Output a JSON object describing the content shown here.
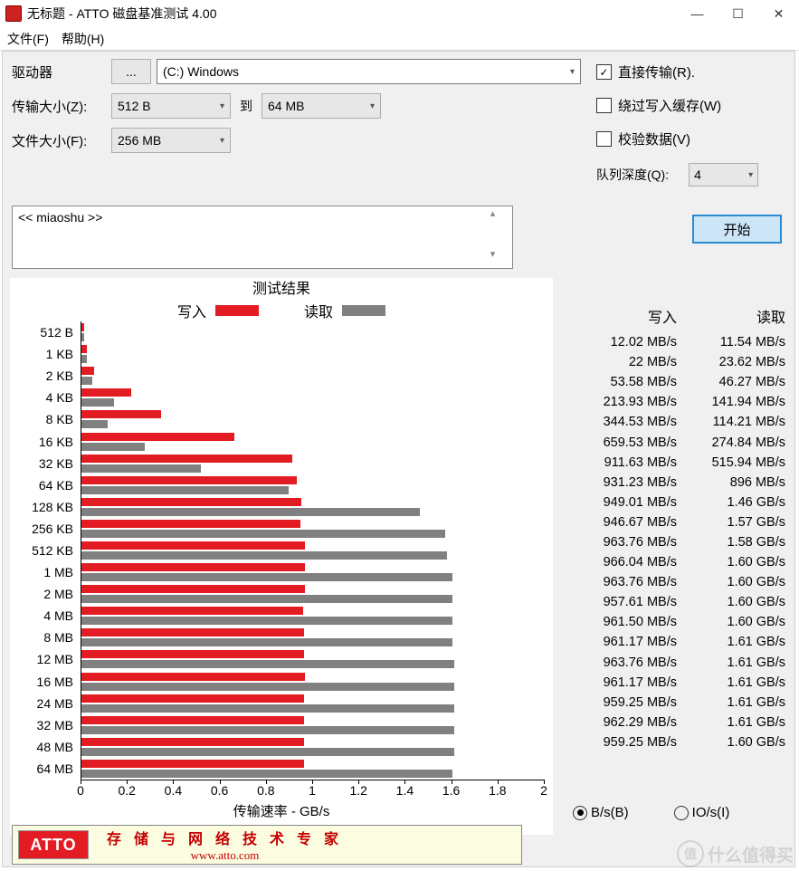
{
  "window": {
    "title": "无标题 - ATTO 磁盘基准测试 4.00"
  },
  "menus": {
    "file": "文件(F)",
    "help": "帮助(H)"
  },
  "labels": {
    "drive": "驱动器",
    "drive_btn": "...",
    "transfer_size": "传输大小(Z):",
    "to": "到",
    "file_size": "文件大小(F):"
  },
  "values": {
    "drive_selected": "(C:) Windows",
    "transfer_from": "512 B",
    "transfer_to": "64 MB",
    "file_size": "256 MB",
    "queue_depth": "4",
    "description": "<< miaoshu >>"
  },
  "checkboxes": {
    "direct": {
      "label": "直接传输(R).",
      "checked": true
    },
    "bypass": {
      "label": "绕过写入缓存(W)",
      "checked": false
    },
    "verify": {
      "label": "校验数据(V)",
      "checked": false
    },
    "queue_label": "队列深度(Q):"
  },
  "start_button": "开始",
  "chart": {
    "title": "测试结果",
    "legend_write": "写入",
    "legend_read": "读取",
    "write_color": "#e31b23",
    "read_color": "#808080",
    "y_categories": [
      "512 B",
      "1 KB",
      "2 KB",
      "4 KB",
      "8 KB",
      "16 KB",
      "32 KB",
      "64 KB",
      "128 KB",
      "256 KB",
      "512 KB",
      "1 MB",
      "2 MB",
      "4 MB",
      "8 MB",
      "12 MB",
      "16 MB",
      "24 MB",
      "32 MB",
      "48 MB",
      "64 MB"
    ],
    "x_max": 2.0,
    "x_ticks": [
      0,
      0.2,
      0.4,
      0.6,
      0.8,
      1,
      1.2,
      1.4,
      1.6,
      1.8,
      2
    ],
    "x_label": "传输速率 - GB/s",
    "write_gbps": [
      0.01202,
      0.022,
      0.05358,
      0.21393,
      0.34453,
      0.65953,
      0.91163,
      0.93123,
      0.94901,
      0.94667,
      0.96376,
      0.96604,
      0.96376,
      0.95761,
      0.9615,
      0.96117,
      0.96376,
      0.96117,
      0.95925,
      0.96229,
      0.95925
    ],
    "read_gbps": [
      0.01154,
      0.02362,
      0.04627,
      0.14194,
      0.11421,
      0.27484,
      0.51594,
      0.896,
      1.46,
      1.57,
      1.58,
      1.6,
      1.6,
      1.6,
      1.6,
      1.61,
      1.61,
      1.61,
      1.61,
      1.61,
      1.6
    ]
  },
  "results": {
    "head_write": "写入",
    "head_read": "读取",
    "rows": [
      {
        "w": "12.02 MB/s",
        "r": "11.54 MB/s"
      },
      {
        "w": "22 MB/s",
        "r": "23.62 MB/s"
      },
      {
        "w": "53.58 MB/s",
        "r": "46.27 MB/s"
      },
      {
        "w": "213.93 MB/s",
        "r": "141.94 MB/s"
      },
      {
        "w": "344.53 MB/s",
        "r": "114.21 MB/s"
      },
      {
        "w": "659.53 MB/s",
        "r": "274.84 MB/s"
      },
      {
        "w": "911.63 MB/s",
        "r": "515.94 MB/s"
      },
      {
        "w": "931.23 MB/s",
        "r": "896 MB/s"
      },
      {
        "w": "949.01 MB/s",
        "r": "1.46 GB/s"
      },
      {
        "w": "946.67 MB/s",
        "r": "1.57 GB/s"
      },
      {
        "w": "963.76 MB/s",
        "r": "1.58 GB/s"
      },
      {
        "w": "966.04 MB/s",
        "r": "1.60 GB/s"
      },
      {
        "w": "963.76 MB/s",
        "r": "1.60 GB/s"
      },
      {
        "w": "957.61 MB/s",
        "r": "1.60 GB/s"
      },
      {
        "w": "961.50 MB/s",
        "r": "1.60 GB/s"
      },
      {
        "w": "961.17 MB/s",
        "r": "1.61 GB/s"
      },
      {
        "w": "963.76 MB/s",
        "r": "1.61 GB/s"
      },
      {
        "w": "961.17 MB/s",
        "r": "1.61 GB/s"
      },
      {
        "w": "959.25 MB/s",
        "r": "1.61 GB/s"
      },
      {
        "w": "962.29 MB/s",
        "r": "1.61 GB/s"
      },
      {
        "w": "959.25 MB/s",
        "r": "1.60 GB/s"
      }
    ]
  },
  "radios": {
    "bytes": "B/s(B)",
    "ios": "IO/s(I)",
    "selected": "bytes"
  },
  "banner": {
    "logo": "ATTO",
    "line1": "存 储 与 网 络 技 术 专 家",
    "line2": "www.atto.com"
  },
  "watermark": "什么值得买"
}
